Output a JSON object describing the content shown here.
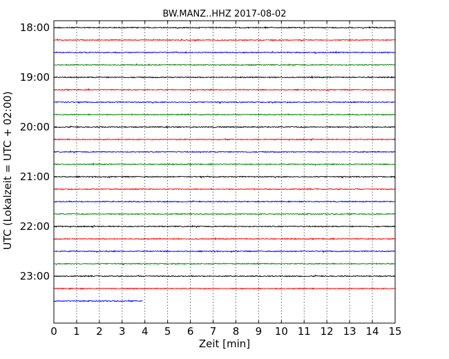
{
  "chart_data": {
    "type": "line",
    "title": "BW.MANZ..HHZ 2017-08-02",
    "xlabel": "Zeit  [min]",
    "ylabel": "UTC (Lokalzeit = UTC + 02:00)",
    "xlim": [
      0,
      15
    ],
    "xticks": [
      "0",
      "1",
      "2",
      "3",
      "4",
      "5",
      "6",
      "7",
      "8",
      "9",
      "10",
      "11",
      "12",
      "13",
      "14",
      "15"
    ],
    "yticks": [
      "18:00",
      "19:00",
      "20:00",
      "21:00",
      "22:00",
      "23:00"
    ],
    "grid": "vertical dotted",
    "trace_colors": [
      "#000000",
      "#ff0000",
      "#0000ff",
      "#008000"
    ],
    "traces": [
      {
        "start": "18:00",
        "color": "#000000",
        "x_end": 15
      },
      {
        "start": "18:15",
        "color": "#ff0000",
        "x_end": 15
      },
      {
        "start": "18:30",
        "color": "#0000ff",
        "x_end": 15
      },
      {
        "start": "18:45",
        "color": "#008000",
        "x_end": 15
      },
      {
        "start": "19:00",
        "color": "#000000",
        "x_end": 15
      },
      {
        "start": "19:15",
        "color": "#ff0000",
        "x_end": 15
      },
      {
        "start": "19:30",
        "color": "#0000ff",
        "x_end": 15
      },
      {
        "start": "19:45",
        "color": "#008000",
        "x_end": 15
      },
      {
        "start": "20:00",
        "color": "#000000",
        "x_end": 15
      },
      {
        "start": "20:15",
        "color": "#ff0000",
        "x_end": 15
      },
      {
        "start": "20:30",
        "color": "#0000ff",
        "x_end": 15
      },
      {
        "start": "20:45",
        "color": "#008000",
        "x_end": 15
      },
      {
        "start": "21:00",
        "color": "#000000",
        "x_end": 15
      },
      {
        "start": "21:15",
        "color": "#ff0000",
        "x_end": 15
      },
      {
        "start": "21:30",
        "color": "#0000ff",
        "x_end": 15
      },
      {
        "start": "21:45",
        "color": "#008000",
        "x_end": 15
      },
      {
        "start": "22:00",
        "color": "#000000",
        "x_end": 15
      },
      {
        "start": "22:15",
        "color": "#ff0000",
        "x_end": 15
      },
      {
        "start": "22:30",
        "color": "#0000ff",
        "x_end": 15
      },
      {
        "start": "22:45",
        "color": "#008000",
        "x_end": 15
      },
      {
        "start": "23:00",
        "color": "#000000",
        "x_end": 15
      },
      {
        "start": "23:15",
        "color": "#ff0000",
        "x_end": 15
      },
      {
        "start": "23:30",
        "color": "#0000ff",
        "x_end": 3.9
      }
    ]
  }
}
